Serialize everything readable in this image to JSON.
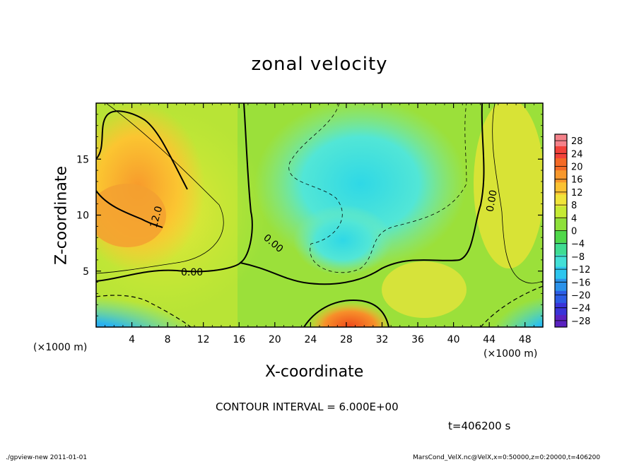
{
  "chart_data": {
    "type": "heatmap",
    "title": "zonal velocity",
    "xlabel": "X-coordinate",
    "ylabel": "Z-coordinate",
    "x_unit_label": "(×1000 m)",
    "x_unit_label_right": "(×1000 m)",
    "xlim": [
      0,
      50
    ],
    "ylim": [
      0,
      20
    ],
    "x_ticks": [
      4,
      8,
      12,
      16,
      20,
      24,
      28,
      32,
      36,
      40,
      44,
      48
    ],
    "y_ticks": [
      5,
      10,
      15
    ],
    "colorbar": {
      "ticks": [
        28,
        24,
        20,
        16,
        12,
        8,
        4,
        0,
        -4,
        -8,
        -12,
        -16,
        -20,
        -24,
        -28
      ],
      "labels": [
        "28",
        "24",
        "20",
        "16",
        "12",
        "8",
        "4",
        "0",
        "−4",
        "−8",
        "−12",
        "−16",
        "−20",
        "−24",
        "−28"
      ],
      "range": [
        -30,
        30
      ]
    },
    "contour_labels": [
      "12.0",
      "0.00",
      "0.00",
      "0.00"
    ],
    "contour_interval_text": "CONTOUR INTERVAL = 6.000E+00",
    "time_text": "t=406200 s"
  },
  "footer": {
    "left": "./gpview-new   2011-01-01",
    "right": "MarsCond_VelX.nc@VelX,x=0:50000,z=0:20000,t=406200"
  }
}
